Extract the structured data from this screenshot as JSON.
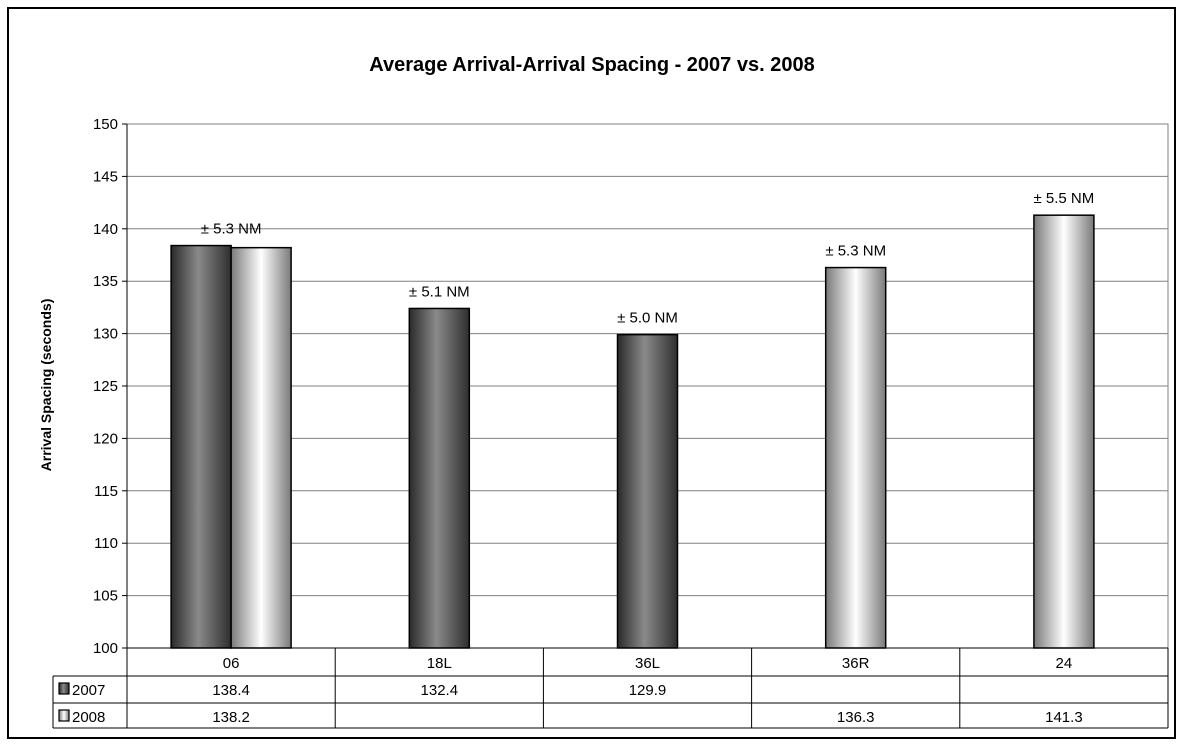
{
  "chart_data": {
    "type": "bar",
    "title": "Average Arrival-Arrival Spacing - 2007 vs. 2008",
    "ylabel": "Arrival Spacing (seconds)",
    "ylim": [
      100,
      150
    ],
    "yticks": [
      100,
      105,
      110,
      115,
      120,
      125,
      130,
      135,
      140,
      145,
      150
    ],
    "grid": true,
    "categories": [
      "06",
      "18L",
      "36L",
      "36R",
      "24"
    ],
    "series": [
      {
        "name": "2007",
        "color": "#555555",
        "values": [
          138.4,
          132.4,
          129.9,
          null,
          null
        ],
        "labels": [
          "138.4",
          "132.4",
          "129.9",
          "",
          ""
        ]
      },
      {
        "name": "2008",
        "color": "#d8d8d8",
        "values": [
          138.2,
          null,
          null,
          136.3,
          141.3
        ],
        "labels": [
          "138.2",
          "",
          "",
          "136.3",
          "141.3"
        ]
      }
    ],
    "annotations": [
      "± 5.3 NM",
      "± 5.1 NM",
      "± 5.0 NM",
      "± 5.3 NM",
      "± 5.5 NM"
    ],
    "data_table": true
  }
}
